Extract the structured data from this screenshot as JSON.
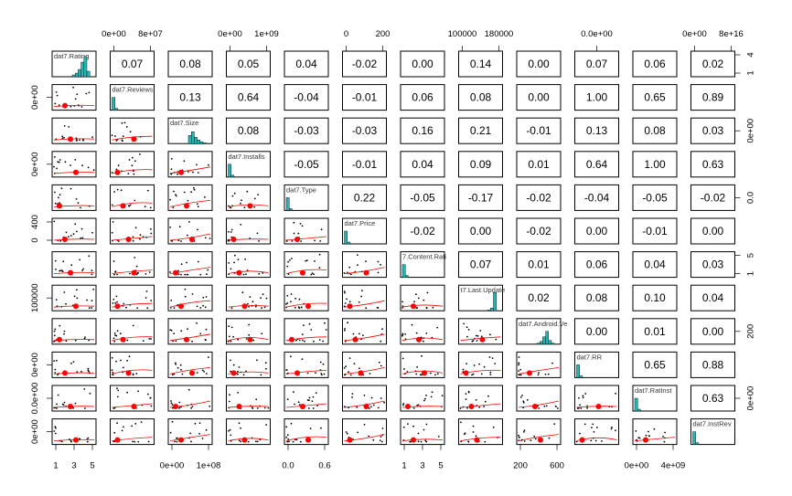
{
  "chart_data": {
    "type": "scatter-matrix",
    "title": "",
    "variables": [
      "dat7.Rating",
      "dat7.Reviews",
      "dat7.Size",
      "dat7.Installs",
      "dat7.Type",
      "dat7.Price",
      "7.Content.Rati",
      "t7.Last.Update",
      "dat7.Android.Ve",
      "dat7.RR",
      "dat7.RatInst",
      "dat7.InstRev"
    ],
    "correlations": [
      [
        null,
        "0.07",
        "0.08",
        "0.05",
        "0.04",
        "-0.02",
        "0.00",
        "0.14",
        "0.00",
        "0.07",
        "0.06",
        "0.02"
      ],
      [
        null,
        null,
        "0.13",
        "0.64",
        "-0.04",
        "-0.01",
        "0.06",
        "0.08",
        "0.00",
        "1.00",
        "0.65",
        "0.89"
      ],
      [
        null,
        null,
        null,
        "0.08",
        "-0.03",
        "-0.03",
        "0.16",
        "0.21",
        "-0.01",
        "0.13",
        "0.08",
        "0.03"
      ],
      [
        null,
        null,
        null,
        null,
        "-0.05",
        "-0.01",
        "0.04",
        "0.09",
        "0.01",
        "0.64",
        "1.00",
        "0.63"
      ],
      [
        null,
        null,
        null,
        null,
        null,
        "0.22",
        "-0.05",
        "-0.17",
        "-0.02",
        "-0.04",
        "-0.05",
        "-0.02"
      ],
      [
        null,
        null,
        null,
        null,
        null,
        null,
        "-0.02",
        "0.00",
        "-0.02",
        "0.00",
        "-0.01",
        "0.00"
      ],
      [
        null,
        null,
        null,
        null,
        null,
        null,
        null,
        "0.07",
        "0.01",
        "0.06",
        "0.04",
        "0.03"
      ],
      [
        null,
        null,
        null,
        null,
        null,
        null,
        null,
        null,
        "0.02",
        "0.08",
        "0.10",
        "0.04"
      ],
      [
        null,
        null,
        null,
        null,
        null,
        null,
        null,
        null,
        null,
        "0.00",
        "0.01",
        "0.00"
      ],
      [
        null,
        null,
        null,
        null,
        null,
        null,
        null,
        null,
        null,
        null,
        "0.65",
        "0.88"
      ],
      [
        null,
        null,
        null,
        null,
        null,
        null,
        null,
        null,
        null,
        null,
        null,
        "0.63"
      ],
      [
        null,
        null,
        null,
        null,
        null,
        null,
        null,
        null,
        null,
        null,
        null,
        null
      ]
    ],
    "top_axis": [
      {
        "col": 1,
        "labels": [
          "0e+00",
          "8e+07"
        ]
      },
      {
        "col": 3,
        "labels": [
          "0e+00",
          "1e+09"
        ]
      },
      {
        "col": 5,
        "labels": [
          "0",
          "200"
        ]
      },
      {
        "col": 7,
        "labels": [
          "100000",
          "180000"
        ]
      },
      {
        "col": 9,
        "labels": [
          "0.0e+00"
        ]
      },
      {
        "col": 11,
        "labels": [
          "0e+00",
          "8e+16"
        ]
      }
    ],
    "bottom_axis": [
      {
        "col": 0,
        "labels": [
          "1",
          "3",
          "5"
        ]
      },
      {
        "col": 2,
        "labels": [
          "0e+00",
          "1e+08"
        ]
      },
      {
        "col": 4,
        "labels": [
          "0.0",
          "0.6"
        ]
      },
      {
        "col": 6,
        "labels": [
          "1",
          "3",
          "5"
        ]
      },
      {
        "col": 8,
        "labels": [
          "200",
          "600"
        ]
      },
      {
        "col": 10,
        "labels": [
          "0e+00",
          "4e+09"
        ]
      }
    ],
    "left_axis": [
      {
        "row": 1,
        "labels": [
          "0e+00"
        ]
      },
      {
        "row": 3,
        "labels": [
          "0e+00"
        ]
      },
      {
        "row": 5,
        "labels": [
          "0",
          "400"
        ]
      },
      {
        "row": 7,
        "labels": [
          "100000"
        ]
      },
      {
        "row": 9,
        "labels": [
          "0e+00"
        ]
      },
      {
        "row": 10,
        "labels": [
          "0.0e+00"
        ]
      },
      {
        "row": 11,
        "labels": [
          "0e+00"
        ]
      }
    ],
    "right_axis": [
      {
        "row": 0,
        "labels": [
          "1",
          "4"
        ]
      },
      {
        "row": 2,
        "labels": [
          "0e+00"
        ]
      },
      {
        "row": 4,
        "labels": [
          "0.0"
        ]
      },
      {
        "row": 6,
        "labels": [
          "1",
          "5"
        ]
      },
      {
        "row": 8,
        "labels": [
          "200"
        ]
      },
      {
        "row": 10,
        "labels": [
          "0e+00"
        ]
      }
    ],
    "colors": {
      "histogram": "#2ab3b3",
      "points": "#000000",
      "smooth": "#ff0000",
      "panel_border": "#000000"
    }
  }
}
